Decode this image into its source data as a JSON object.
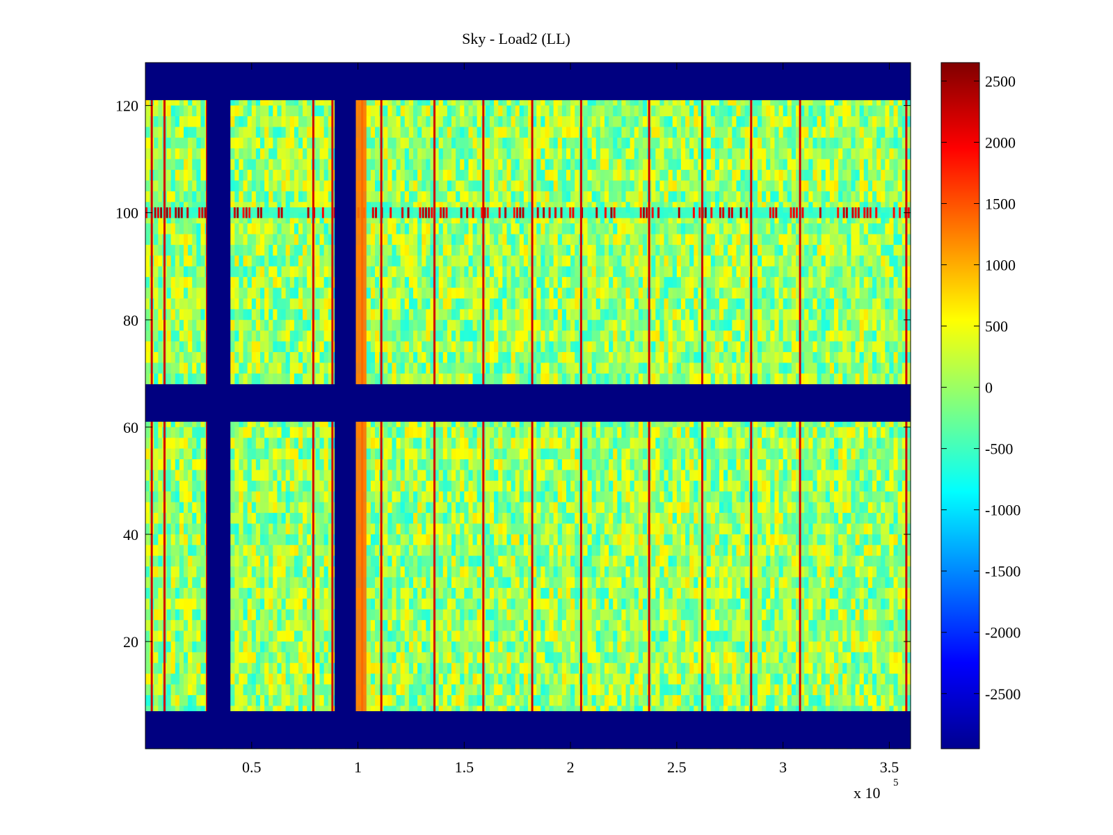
{
  "chart_data": {
    "type": "heatmap",
    "title": "Sky - Load2 (LL)",
    "xlabel": "",
    "ylabel": "",
    "x_exponent_label": "x 10",
    "x_exponent_power": "5",
    "xlim": [
      0,
      3.6
    ],
    "ylim": [
      0,
      128
    ],
    "x_ticks": [
      0.5,
      1,
      1.5,
      2,
      2.5,
      3,
      3.5
    ],
    "x_tick_labels": [
      "0.5",
      "1",
      "1.5",
      "2",
      "2.5",
      "3",
      "3.5"
    ],
    "y_ticks": [
      20,
      40,
      60,
      80,
      100,
      120
    ],
    "y_tick_labels": [
      "20",
      "40",
      "60",
      "80",
      "100",
      "120"
    ],
    "colorbar": {
      "range": [
        -2950,
        2650
      ],
      "ticks": [
        2500,
        2000,
        1500,
        1000,
        500,
        0,
        -500,
        -1000,
        -1500,
        -2000,
        -2500
      ],
      "tick_labels": [
        "2500",
        "2000",
        "1500",
        "1000",
        "500",
        "0",
        "-500",
        "-1000",
        "-1500",
        "-2000",
        "-2500"
      ],
      "colormap": "jet"
    },
    "masked_value": -2950,
    "masked_rows": [
      [
        0,
        7
      ],
      [
        61,
        68
      ],
      [
        121,
        128
      ]
    ],
    "masked_columns": [
      [
        0.29,
        0.4
      ],
      [
        0.89,
        0.99
      ]
    ],
    "background_value": 0,
    "hot_columns": [
      0.03,
      0.09,
      0.29,
      0.79,
      0.88,
      1.02,
      1.11,
      1.36,
      1.59,
      1.82,
      2.05,
      2.37,
      2.62,
      2.85,
      3.08,
      3.58
    ],
    "hot_row_band": [
      99,
      101
    ]
  }
}
